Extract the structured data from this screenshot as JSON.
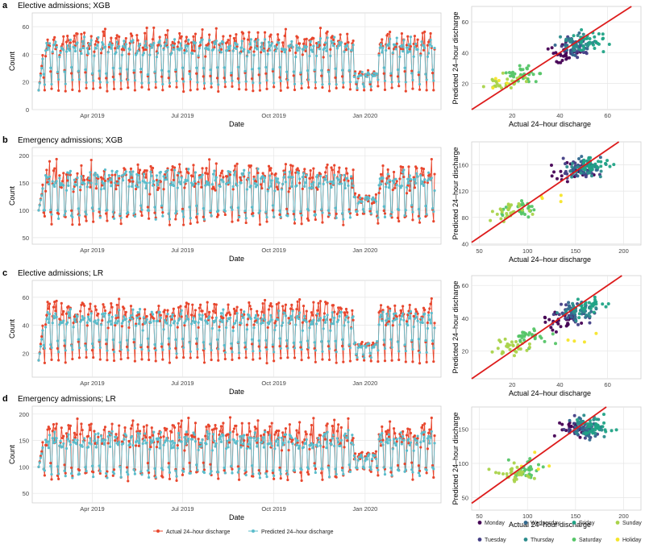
{
  "colors": {
    "actual": "#e8472e",
    "predicted": "#5bbccb",
    "identity_line": "#dd1c1c",
    "grid": "#e6e6e6",
    "panel_border": "#d0d0d0",
    "days": {
      "Monday": "#440154",
      "Tuesday": "#433e85",
      "Wednesday": "#31688e",
      "Thursday": "#2b8c8c",
      "Friday": "#20a386",
      "Saturday": "#55c567",
      "Sunday": "#a9d34a",
      "Holiday": "#f5e529"
    }
  },
  "legend_series": [
    "Actual 24–hour discharge",
    "Predicted 24–hour discharge"
  ],
  "legend_days": [
    "Monday",
    "Tuesday",
    "Wednesday",
    "Thursday",
    "Friday",
    "Saturday",
    "Sunday",
    "Holiday"
  ],
  "chart_data": [
    {
      "panel": "a",
      "title": "Elective admissions; XGB",
      "timeseries": {
        "type": "line",
        "xlabel": "Date",
        "ylabel": "Count",
        "x_ticks": [
          "Apr 2019",
          "Jul 2019",
          "Oct 2019",
          "Jan 2020"
        ],
        "x_tick_days": [
          54,
          145,
          237,
          329
        ],
        "y_ticks": [
          "0",
          "20",
          "40",
          "60"
        ],
        "ylim": [
          0,
          70
        ],
        "n_days": 400,
        "series": [
          {
            "name": "Actual 24–hour discharge",
            "weekday_means": [
              44,
              48,
              50,
              49,
              52,
              25,
              15
            ]
          },
          {
            "name": "Predicted 24–hour discharge",
            "weekday_means": [
              42,
              45,
              46,
              46,
              48,
              28,
              20
            ]
          }
        ],
        "holiday_dip": {
          "start_day": 318,
          "end_day": 340,
          "level": 14
        }
      },
      "scatter": {
        "type": "scatter",
        "xlabel": "Actual 24–hour discharge",
        "ylabel": "Predicted 24–hour discharge",
        "x_ticks": [
          "20",
          "40",
          "60"
        ],
        "y_ticks": [
          "20",
          "40",
          "60"
        ],
        "xlim": [
          3,
          74
        ],
        "ylim": [
          3,
          70
        ],
        "cluster_centers": {
          "Monday": [
            42,
            40
          ],
          "Tuesday": [
            46,
            43
          ],
          "Wednesday": [
            48,
            45
          ],
          "Thursday": [
            48,
            46
          ],
          "Friday": [
            53,
            48
          ],
          "Saturday": [
            25,
            25
          ],
          "Sunday": [
            17,
            19
          ],
          "Holiday": [
            13,
            20
          ]
        }
      }
    },
    {
      "panel": "b",
      "title": "Emergency admissions; XGB",
      "timeseries": {
        "type": "line",
        "xlabel": "Date",
        "ylabel": "Count",
        "x_ticks": [
          "Apr 2019",
          "Jul 2019",
          "Oct 2019",
          "Jan 2020"
        ],
        "x_tick_days": [
          54,
          145,
          237,
          329
        ],
        "y_ticks": [
          "50",
          "100",
          "150",
          "200"
        ],
        "ylim": [
          38,
          215
        ],
        "n_days": 400,
        "series": [
          {
            "name": "Actual 24–hour discharge",
            "weekday_means": [
              150,
              160,
              162,
              158,
              170,
              95,
              85
            ]
          },
          {
            "name": "Predicted 24–hour discharge",
            "weekday_means": [
              150,
              155,
              157,
              155,
              160,
              100,
              92
            ]
          }
        ],
        "holiday_dip": {
          "start_day": 318,
          "end_day": 340,
          "level": 100
        }
      },
      "scatter": {
        "type": "scatter",
        "xlabel": "Actual 24–hour discharge",
        "ylabel": "Predicted 24–hour discharge",
        "x_ticks": [
          "50",
          "100",
          "150",
          "200"
        ],
        "y_ticks": [
          "40",
          "80",
          "120",
          "160"
        ],
        "xlim": [
          42,
          218
        ],
        "ylim": [
          38,
          195
        ],
        "cluster_centers": {
          "Monday": [
            148,
            150
          ],
          "Tuesday": [
            155,
            152
          ],
          "Wednesday": [
            160,
            155
          ],
          "Thursday": [
            162,
            157
          ],
          "Friday": [
            168,
            160
          ],
          "Saturday": [
            95,
            95
          ],
          "Sunday": [
            85,
            90
          ],
          "Holiday": [
            120,
            110
          ]
        }
      }
    },
    {
      "panel": "c",
      "title": "Elective admissions; LR",
      "timeseries": {
        "type": "line",
        "xlabel": "Date",
        "ylabel": "Count",
        "x_ticks": [
          "Apr 2019",
          "Jul 2019",
          "Oct 2019",
          "Jan 2020"
        ],
        "x_tick_days": [
          54,
          145,
          237,
          329
        ],
        "y_ticks": [
          "20",
          "40",
          "60"
        ],
        "ylim": [
          3,
          72
        ],
        "n_days": 400,
        "series": [
          {
            "name": "Actual 24–hour discharge",
            "weekday_means": [
              44,
              48,
              50,
              49,
              52,
              25,
              15
            ]
          },
          {
            "name": "Predicted 24–hour discharge",
            "weekday_means": [
              40,
              44,
              45,
              45,
              47,
              28,
              22
            ]
          }
        ],
        "holiday_dip": {
          "start_day": 318,
          "end_day": 340,
          "level": 15
        }
      },
      "scatter": {
        "type": "scatter",
        "xlabel": "Actual 24–hour discharge",
        "ylabel": "Predicted 24–hour discharge",
        "x_ticks": [
          "20",
          "40",
          "60"
        ],
        "y_ticks": [
          "20",
          "40",
          "60"
        ],
        "xlim": [
          3,
          74
        ],
        "ylim": [
          3,
          66
        ],
        "cluster_centers": {
          "Monday": [
            40,
            38
          ],
          "Tuesday": [
            45,
            42
          ],
          "Wednesday": [
            47,
            44
          ],
          "Thursday": [
            48,
            45
          ],
          "Friday": [
            53,
            47
          ],
          "Saturday": [
            28,
            28
          ],
          "Sunday": [
            20,
            22
          ],
          "Holiday": [
            48,
            28
          ]
        }
      }
    },
    {
      "panel": "d",
      "title": "Emergency admissions; LR",
      "timeseries": {
        "type": "line",
        "xlabel": "Date",
        "ylabel": "Count",
        "x_ticks": [
          "Apr 2019",
          "Jul 2019",
          "Oct 2019",
          "Jan 2020"
        ],
        "x_tick_days": [
          54,
          145,
          237,
          329
        ],
        "y_ticks": [
          "50",
          "100",
          "150",
          "200"
        ],
        "ylim": [
          32,
          215
        ],
        "n_days": 400,
        "series": [
          {
            "name": "Actual 24–hour discharge",
            "weekday_means": [
              150,
              160,
              162,
              158,
              170,
              95,
              85
            ]
          },
          {
            "name": "Predicted 24–hour discharge",
            "weekday_means": [
              145,
              150,
              152,
              150,
              155,
              95,
              88
            ]
          }
        ],
        "holiday_dip": {
          "start_day": 318,
          "end_day": 340,
          "level": 100
        }
      },
      "scatter": {
        "type": "scatter",
        "xlabel": "Actual 24–hour discharge",
        "ylabel": "Predicted 24–hour discharge",
        "x_ticks": [
          "50",
          "100",
          "150",
          "200"
        ],
        "y_ticks": [
          "50",
          "100",
          "150"
        ],
        "xlim": [
          42,
          218
        ],
        "ylim": [
          32,
          182
        ],
        "cluster_centers": {
          "Monday": [
            150,
            148
          ],
          "Tuesday": [
            155,
            150
          ],
          "Wednesday": [
            160,
            152
          ],
          "Thursday": [
            162,
            153
          ],
          "Friday": [
            168,
            155
          ],
          "Saturday": [
            95,
            92
          ],
          "Sunday": [
            85,
            85
          ],
          "Holiday": [
            110,
            100
          ]
        }
      }
    }
  ]
}
